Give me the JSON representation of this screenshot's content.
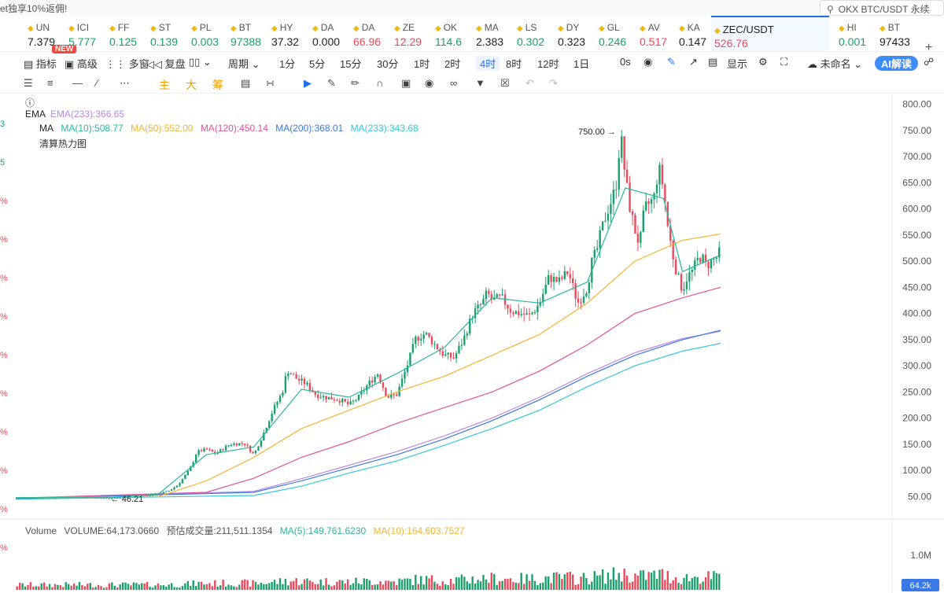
{
  "topbar": {
    "promo": "et独享10%返佣!",
    "search_placeholder": "OKX BTC/USDT 永续"
  },
  "tickers": [
    {
      "sym": "UN",
      "price": "7.379",
      "dir": "nt"
    },
    {
      "sym": "ICI",
      "price": "5.777",
      "dir": "up"
    },
    {
      "sym": "FF",
      "price": "0.125",
      "dir": "up"
    },
    {
      "sym": "ST",
      "price": "0.139",
      "dir": "up"
    },
    {
      "sym": "PL",
      "price": "0.003",
      "dir": "up"
    },
    {
      "sym": "BT",
      "price": "97388",
      "dir": "up"
    },
    {
      "sym": "HY",
      "price": "37.32",
      "dir": "nt"
    },
    {
      "sym": "DA",
      "price": "0.000",
      "dir": "nt"
    },
    {
      "sym": "DA",
      "price": "66.96",
      "dir": "dn"
    },
    {
      "sym": "ZE",
      "price": "12.29",
      "dir": "dn"
    },
    {
      "sym": "OK",
      "price": "114.6",
      "dir": "up"
    },
    {
      "sym": "MA",
      "price": "2.383",
      "dir": "nt"
    },
    {
      "sym": "LS",
      "price": "0.302",
      "dir": "up"
    },
    {
      "sym": "DY",
      "price": "0.323",
      "dir": "nt"
    },
    {
      "sym": "GL",
      "price": "0.246",
      "dir": "up"
    },
    {
      "sym": "AV",
      "price": "0.517",
      "dir": "dn"
    },
    {
      "sym": "KA",
      "price": "0.147",
      "dir": "nt"
    },
    {
      "sym": "ZEC/USDT",
      "price": "526.76",
      "dir": "dn",
      "active": true
    },
    {
      "sym": "HI",
      "price": "0.001",
      "dir": "up"
    },
    {
      "sym": "BT",
      "price": "97433",
      "dir": "nt"
    }
  ],
  "badge_new": "NEW",
  "toolbar": {
    "indicators": "指标",
    "advanced": "高级",
    "multi": "多窗",
    "replay": "复盘",
    "period": "周期",
    "intervals": [
      "1分",
      "5分",
      "15分",
      "30分",
      "1时",
      "2时",
      "4时",
      "8时",
      "12时",
      "1日"
    ],
    "selected_interval": "4时",
    "countdown": "0s",
    "display": "显示",
    "unnamed": "未命名",
    "ai": "AI解读"
  },
  "drawbar": {
    "main": "主",
    "big": "大",
    "chip": "筹"
  },
  "left_strip": [
    "3",
    "5",
    "%",
    "%",
    "%",
    "%",
    "%",
    "%",
    "%",
    "%",
    "%",
    "%"
  ],
  "legend": {
    "ema_label": "EMA",
    "ema_233": "EMA(233):366.65",
    "ma_label": "MA",
    "ma10": "MA(10):508.77",
    "ma50": "MA(50):552.00",
    "ma120": "MA(120):450.14",
    "ma200": "MA(200):368.01",
    "ma233": "MA(233):343.68",
    "heatmap": "清算热力图"
  },
  "volume_legend": {
    "label": "Volume",
    "volume": "VOLUME:64,173.0660",
    "est": "预估成交量:211,511.1354",
    "ma5": "MA(5):149,761.6230",
    "ma10": "MA(10):164,603.7527"
  },
  "colors": {
    "up": "#1aa16b",
    "down": "#e84b5c",
    "ma10": "#2bb5a0",
    "ma50": "#f3b533",
    "ma120": "#e0559a",
    "ma200": "#3b78e7",
    "ma233": "#36c8dc",
    "ema233": "#b98ae6"
  },
  "chart_data": {
    "type": "candlestick",
    "title": "ZEC/USDT 4时",
    "ylim": [
      0,
      800
    ],
    "y_ticks": [
      "800.00",
      "750.00",
      "700.00",
      "650.00",
      "600.00",
      "550.00",
      "500.00",
      "450.00",
      "400.00",
      "350.00",
      "300.00",
      "250.00",
      "200.00",
      "150.00",
      "100.00",
      "50.00"
    ],
    "high_label": "750.00",
    "low_label": "46.21",
    "close_path": [
      [
        0,
        48
      ],
      [
        40,
        47
      ],
      [
        70,
        49
      ],
      [
        98,
        46
      ],
      [
        120,
        50
      ],
      [
        140,
        52
      ],
      [
        160,
        60
      ],
      [
        170,
        72
      ],
      [
        180,
        95
      ],
      [
        185,
        110
      ],
      [
        190,
        135
      ],
      [
        200,
        140
      ],
      [
        210,
        132
      ],
      [
        225,
        150
      ],
      [
        240,
        152
      ],
      [
        250,
        130
      ],
      [
        260,
        170
      ],
      [
        270,
        215
      ],
      [
        280,
        250
      ],
      [
        285,
        292
      ],
      [
        295,
        275
      ],
      [
        305,
        265
      ],
      [
        315,
        245
      ],
      [
        325,
        240
      ],
      [
        340,
        235
      ],
      [
        350,
        225
      ],
      [
        360,
        240
      ],
      [
        370,
        265
      ],
      [
        380,
        285
      ],
      [
        390,
        240
      ],
      [
        400,
        245
      ],
      [
        410,
        295
      ],
      [
        420,
        352
      ],
      [
        430,
        362
      ],
      [
        440,
        340
      ],
      [
        450,
        320
      ],
      [
        460,
        315
      ],
      [
        470,
        350
      ],
      [
        480,
        400
      ],
      [
        490,
        420
      ],
      [
        495,
        440
      ],
      [
        500,
        425
      ],
      [
        510,
        430
      ],
      [
        520,
        405
      ],
      [
        530,
        400
      ],
      [
        540,
        395
      ],
      [
        550,
        420
      ],
      [
        560,
        470
      ],
      [
        570,
        460
      ],
      [
        580,
        480
      ],
      [
        590,
        420
      ],
      [
        600,
        450
      ],
      [
        605,
        500
      ],
      [
        610,
        520
      ],
      [
        615,
        560
      ],
      [
        620,
        590
      ],
      [
        630,
        640
      ],
      [
        635,
        745
      ],
      [
        640,
        660
      ],
      [
        645,
        600
      ],
      [
        650,
        560
      ],
      [
        655,
        530
      ],
      [
        660,
        600
      ],
      [
        670,
        620
      ],
      [
        675,
        680
      ],
      [
        680,
        640
      ],
      [
        685,
        560
      ],
      [
        690,
        510
      ],
      [
        695,
        470
      ],
      [
        700,
        445
      ],
      [
        705,
        470
      ],
      [
        710,
        480
      ],
      [
        715,
        500
      ],
      [
        720,
        510
      ],
      [
        725,
        490
      ],
      [
        730,
        500
      ],
      [
        735,
        505
      ],
      [
        740,
        520
      ]
    ],
    "ma10": [
      [
        0,
        48
      ],
      [
        100,
        48
      ],
      [
        150,
        55
      ],
      [
        200,
        130
      ],
      [
        250,
        145
      ],
      [
        300,
        255
      ],
      [
        350,
        240
      ],
      [
        400,
        285
      ],
      [
        450,
        335
      ],
      [
        500,
        430
      ],
      [
        550,
        420
      ],
      [
        600,
        460
      ],
      [
        640,
        640
      ],
      [
        680,
        620
      ],
      [
        700,
        480
      ],
      [
        740,
        512
      ]
    ],
    "ma50": [
      [
        0,
        48
      ],
      [
        150,
        50
      ],
      [
        200,
        80
      ],
      [
        250,
        125
      ],
      [
        300,
        180
      ],
      [
        350,
        215
      ],
      [
        400,
        250
      ],
      [
        450,
        280
      ],
      [
        500,
        320
      ],
      [
        550,
        360
      ],
      [
        600,
        420
      ],
      [
        650,
        500
      ],
      [
        700,
        540
      ],
      [
        740,
        552
      ]
    ],
    "ma120": [
      [
        0,
        47
      ],
      [
        200,
        58
      ],
      [
        250,
        85
      ],
      [
        300,
        125
      ],
      [
        350,
        155
      ],
      [
        400,
        190
      ],
      [
        450,
        220
      ],
      [
        500,
        250
      ],
      [
        550,
        290
      ],
      [
        600,
        340
      ],
      [
        650,
        400
      ],
      [
        700,
        430
      ],
      [
        740,
        450
      ]
    ],
    "ma200": [
      [
        0,
        46
      ],
      [
        250,
        58
      ],
      [
        300,
        80
      ],
      [
        350,
        105
      ],
      [
        400,
        130
      ],
      [
        450,
        160
      ],
      [
        500,
        195
      ],
      [
        550,
        235
      ],
      [
        600,
        280
      ],
      [
        650,
        320
      ],
      [
        700,
        350
      ],
      [
        740,
        368
      ]
    ],
    "ma233": [
      [
        0,
        45
      ],
      [
        250,
        52
      ],
      [
        300,
        70
      ],
      [
        350,
        95
      ],
      [
        400,
        118
      ],
      [
        450,
        148
      ],
      [
        500,
        180
      ],
      [
        550,
        215
      ],
      [
        600,
        260
      ],
      [
        650,
        300
      ],
      [
        700,
        328
      ],
      [
        740,
        343
      ]
    ],
    "ema233": [
      [
        0,
        46
      ],
      [
        250,
        60
      ],
      [
        300,
        84
      ],
      [
        350,
        110
      ],
      [
        400,
        136
      ],
      [
        450,
        166
      ],
      [
        500,
        200
      ],
      [
        550,
        240
      ],
      [
        600,
        285
      ],
      [
        650,
        325
      ],
      [
        700,
        352
      ],
      [
        740,
        366
      ]
    ],
    "volume_yticks": [
      "1.0M"
    ],
    "volume_last_label": "64.2k"
  }
}
